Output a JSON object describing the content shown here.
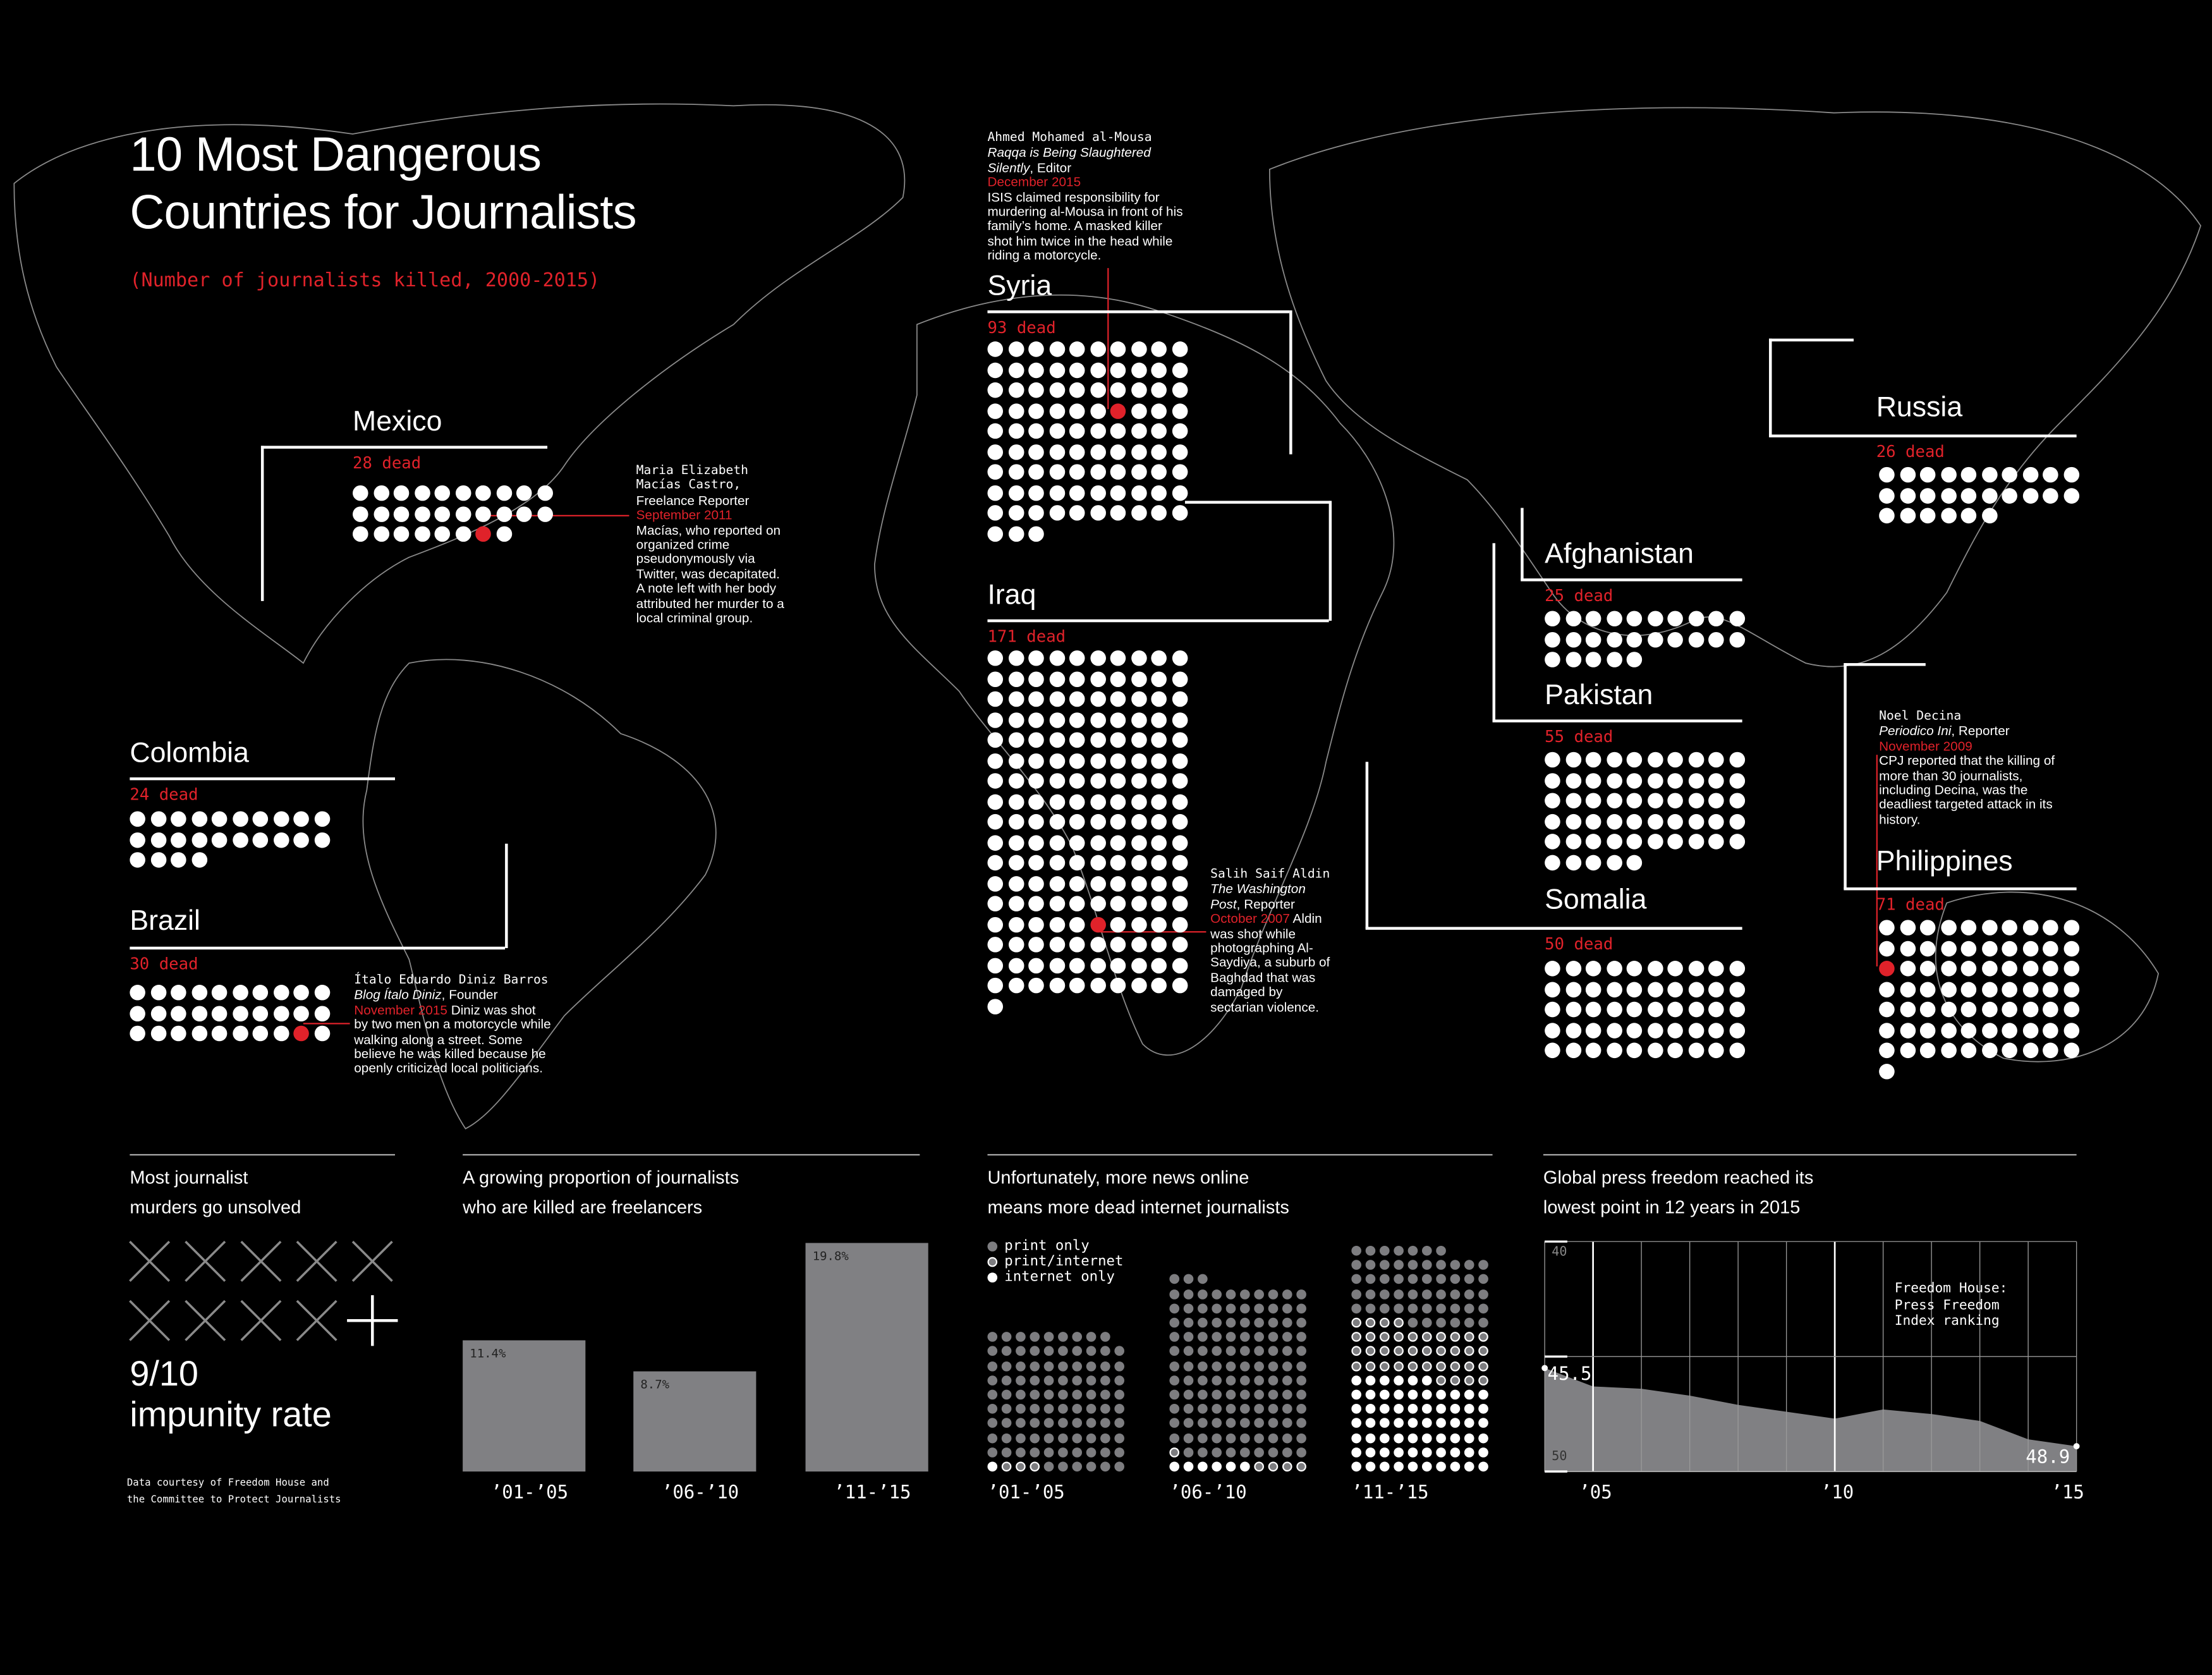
{
  "title": [
    "10 Most Dangerous",
    "Countries for Journalists"
  ],
  "subtitle": "(Number of journalists killed, 2000-2015)",
  "colors": {
    "accent": "#e0222a",
    "dot": "#ffffff",
    "gray": "#808083",
    "background": "#000000"
  },
  "countries": [
    {
      "name": "Mexico",
      "dead_label": "28 dead",
      "count": 28,
      "highlight_dot": 26
    },
    {
      "name": "Syria",
      "dead_label": "93 dead",
      "count": 93,
      "highlight_dot": 36
    },
    {
      "name": "Iraq",
      "dead_label": "171 dead",
      "count": 171,
      "highlight_dot": 135
    },
    {
      "name": "Colombia",
      "dead_label": "24 dead",
      "count": 24
    },
    {
      "name": "Brazil",
      "dead_label": "30 dead",
      "count": 30,
      "highlight_dot": 28
    },
    {
      "name": "Russia",
      "dead_label": "26 dead",
      "count": 26
    },
    {
      "name": "Afghanistan",
      "dead_label": "25 dead",
      "count": 25
    },
    {
      "name": "Pakistan",
      "dead_label": "55 dead",
      "count": 55
    },
    {
      "name": "Somalia",
      "dead_label": "50 dead",
      "count": 50
    },
    {
      "name": "Philippines",
      "dead_label": "71 dead",
      "count": 71,
      "highlight_dot": 20
    }
  ],
  "annotations": {
    "mexico": {
      "name": "Maria Elizabeth Macías Castro,",
      "outlet": "",
      "role": "Freelance Reporter",
      "date": "September 2011",
      "text": "Macías, who reported on organized crime pseudonymously via Twitter, was decapitated. A note left with her body attributed her murder to a local criminal group."
    },
    "syria": {
      "name": "Ahmed Mohamed al-Mousa",
      "outlet": "Raqqa is Being Slaughtered Silently",
      "role": ", Editor",
      "date": "December 2015",
      "text": "ISIS claimed responsibility for murdering al-Mousa in front of his family’s home. A masked killer shot him twice in the head while riding a motorcycle."
    },
    "iraq": {
      "name": "Salih Saif Aldin",
      "outlet": "The Washington Post",
      "role": ", Reporter",
      "date": "October 2007",
      "text": "Aldin was shot while photographing Al-Saydiya, a suburb of Baghdad that was damaged by sectarian violence."
    },
    "brazil": {
      "name": "Ítalo Eduardo Diniz Barros",
      "outlet": "Blog Ítalo Diniz",
      "role": ", Founder",
      "date": "November 2015",
      "text": "Diniz was shot by two men on a motorcycle while walking along a street. Some believe he was killed because he openly criticized local politicians."
    },
    "philippines": {
      "name": "Noel Decina",
      "outlet": "Periodico Ini",
      "role": ", Reporter",
      "date": "November 2009",
      "text": "CPJ reported that the killing of more than 30 journalists, including Decina, was the deadliest targeted attack in its history."
    }
  },
  "impunity": {
    "heading": [
      "Most journalist",
      "murders go unsolved"
    ],
    "unsolved": 9,
    "total": 10,
    "value": "9/10",
    "label": "impunity rate",
    "source": [
      "Data courtesy of Freedom House and",
      "the Committee to Protect Journalists"
    ]
  },
  "chart_data": [
    {
      "type": "bar",
      "title": "A growing proportion of journalists who are killed are freelancers",
      "title_lines": [
        "A growing proportion of journalists",
        "who are killed are freelancers"
      ],
      "categories": [
        "’01-’05",
        "’06-’10",
        "’11-’15"
      ],
      "values": [
        11.4,
        8.7,
        19.8
      ],
      "value_labels": [
        "11.4%",
        "8.7%",
        "19.8%"
      ],
      "ylim": [
        0,
        19.8
      ]
    },
    {
      "type": "scatter",
      "subtype": "unit-dot",
      "title_lines": [
        "Unfortunately, more news online",
        "means more dead internet journalists"
      ],
      "categories": [
        "’01-’05",
        "’06-’10",
        "’11-’15"
      ],
      "series": [
        {
          "name": "print only",
          "values": [
            95,
            122,
            53
          ]
        },
        {
          "name": "print/internet",
          "values": [
            3,
            5,
            38
          ]
        },
        {
          "name": "internet only",
          "values": [
            1,
            6,
            66
          ]
        }
      ],
      "legend": "top-left"
    },
    {
      "type": "area",
      "title_lines": [
        "Global press freedom reached its",
        "lowest point in 12 years in 2015"
      ],
      "annotation": [
        "Freedom House:",
        "Press Freedom",
        "Index ranking"
      ],
      "x": [
        2004,
        2005,
        2006,
        2007,
        2008,
        2009,
        2010,
        2011,
        2012,
        2013,
        2014,
        2015
      ],
      "y": [
        45.5,
        46.3,
        46.4,
        46.7,
        47.1,
        47.4,
        47.7,
        47.3,
        47.5,
        47.8,
        48.6,
        48.9
      ],
      "ylim": [
        40,
        50
      ],
      "y_inverted": true,
      "yticks": [
        "40",
        "50"
      ],
      "xticks": [
        "’05",
        "’10",
        "’15"
      ],
      "start_label": "45.5",
      "end_label": "48.9",
      "grid": true
    }
  ]
}
